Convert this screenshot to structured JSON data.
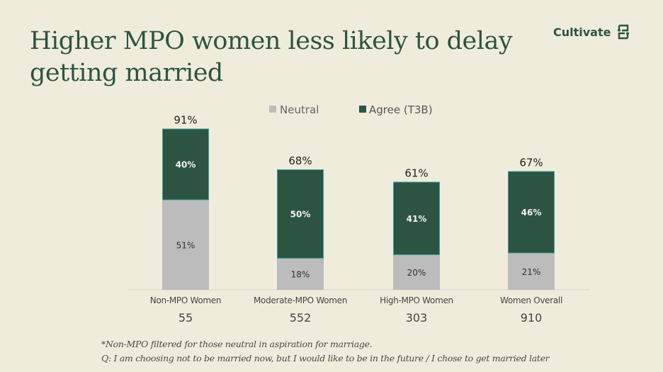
{
  "title": "Higher MPO women less likely to delay getting married",
  "brand": {
    "name": "Cultivate",
    "icon": "cultivate-logo-icon"
  },
  "colors": {
    "background": "#f0ecdc",
    "agree": "#2d5443",
    "agree_border": "#3aa39a",
    "neutral": "#bcbcbc",
    "title": "#2d5440"
  },
  "chart_data": {
    "type": "bar",
    "stacked": true,
    "categories": [
      "Non-MPO Women",
      "Moderate-MPO Women",
      "High-MPO Women",
      "Women Overall"
    ],
    "sample_sizes": [
      "55",
      "552",
      "303",
      "910"
    ],
    "series": [
      {
        "name": "Neutral",
        "values": [
          51,
          18,
          20,
          21
        ],
        "labels": [
          "51%",
          "18%",
          "20%",
          "21%"
        ]
      },
      {
        "name": "Agree (T3B)",
        "values": [
          40,
          50,
          41,
          46
        ],
        "labels": [
          "40%",
          "50%",
          "41%",
          "46%"
        ]
      }
    ],
    "totals": [
      "91%",
      "68%",
      "61%",
      "67%"
    ],
    "legend": [
      "Neutral",
      "Agree (T3B)"
    ],
    "legend_position": "top",
    "ylim": [
      0,
      100
    ],
    "grid": false
  },
  "footnotes": [
    "*Non-MPO filtered for those neutral in aspiration for marriage.",
    "Q: I am choosing not to be married now, but I would like to be in the future / I chose to get married later"
  ]
}
